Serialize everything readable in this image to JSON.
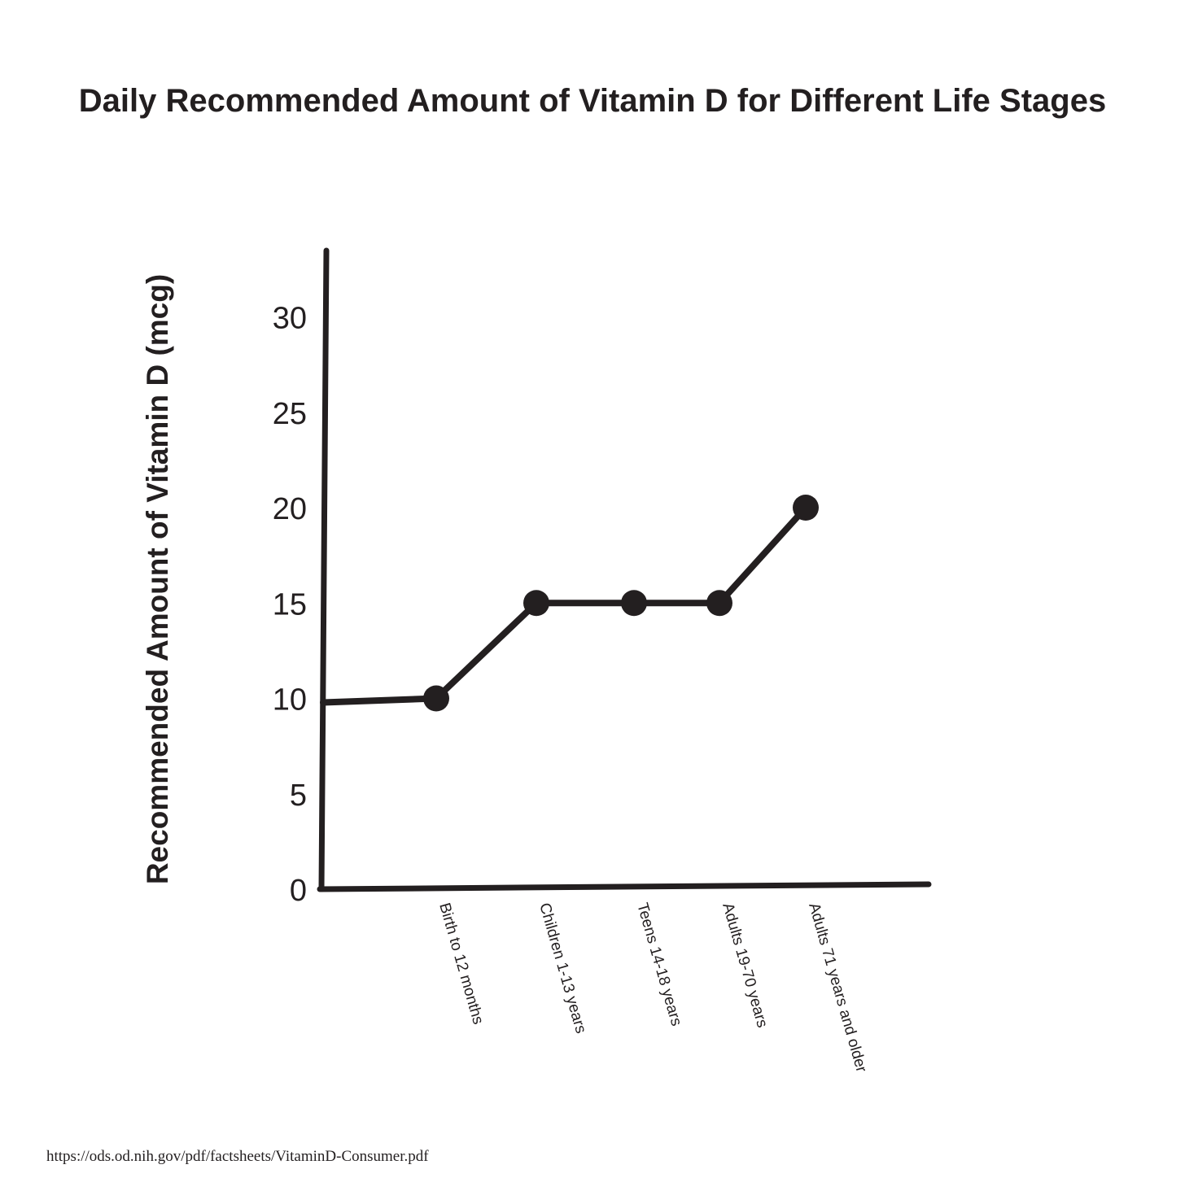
{
  "chart_data": {
    "type": "line",
    "title": "Daily Recommended Amount of Vitamin D for Different Life Stages",
    "ylabel": "Recommended Amount of Vitamin D (mcg)",
    "xlabel": "",
    "categories": [
      "Birth to 12 months",
      "Children 1-13 years",
      "Teens 14-18 years",
      "Adults 19-70 years",
      "Adults 71 years and older"
    ],
    "values": [
      10,
      15,
      15,
      15,
      20
    ],
    "yticks": [
      0,
      5,
      10,
      15,
      20,
      25,
      30
    ],
    "ylim": [
      0,
      33
    ],
    "grid": false,
    "legend": "none"
  },
  "source": "https://ods.od.nih.gov/pdf/factsheets/VitaminD-Consumer.pdf",
  "colors": {
    "ink": "#231f20",
    "background": "#ffffff"
  }
}
